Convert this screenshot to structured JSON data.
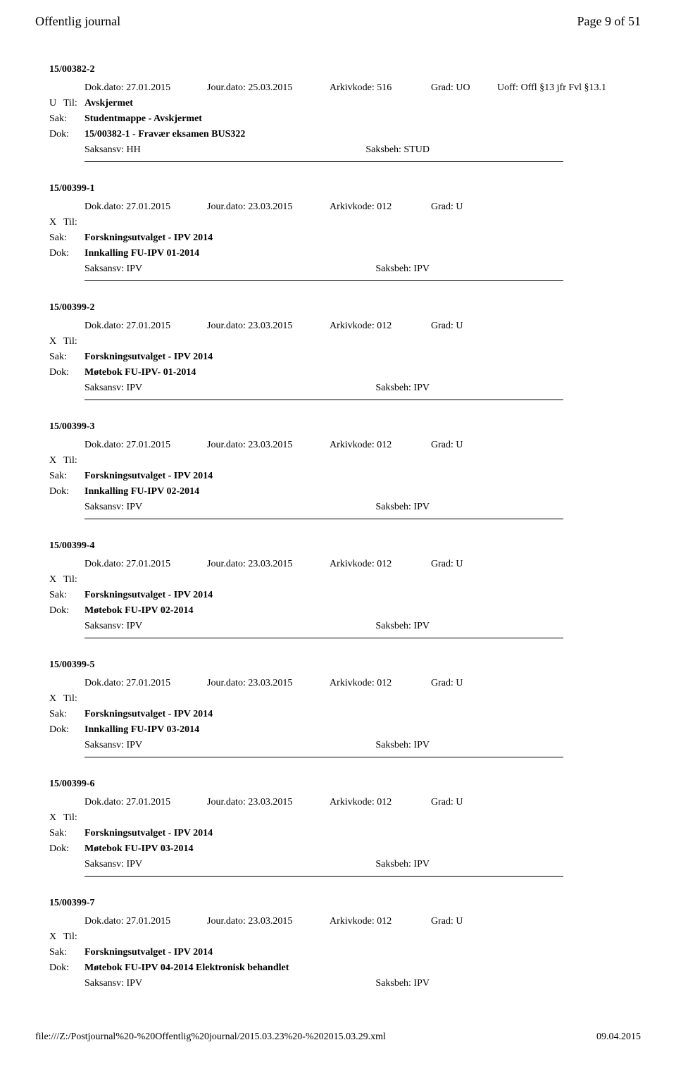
{
  "header": {
    "title": "Offentlig journal",
    "page_info": "Page 9 of 51"
  },
  "labels": {
    "dok_dato_prefix": "Dok.dato: ",
    "jour_dato_prefix": "Jour.dato: ",
    "arkiv_prefix": "Arkivkode: ",
    "grad_prefix": "Grad: ",
    "uoff_prefix": "Uoff: ",
    "til": "Til:",
    "sak": "Sak:",
    "dok": "Dok:",
    "saksansv_prefix": "Saksansv: ",
    "saksbeh_prefix": "Saksbeh: "
  },
  "cases": [
    {
      "id": "15/00382-2",
      "dok_dato": "27.01.2015",
      "jour_dato": "25.03.2015",
      "arkiv": "516",
      "grad": "UO",
      "uoff": "Offl §13 jfr Fvl §13.1",
      "type": "U",
      "til": "Avskjermet",
      "sak": "Studentmappe - Avskjermet",
      "dok": "15/00382-1 - Fravær eksamen BUS322",
      "saksansv": "HH",
      "saksbeh": "STUD"
    },
    {
      "id": "15/00399-1",
      "dok_dato": "27.01.2015",
      "jour_dato": "23.03.2015",
      "arkiv": "012",
      "grad": "U",
      "uoff": "",
      "type": "X",
      "til": "",
      "sak": "Forskningsutvalget - IPV 2014",
      "dok": "Innkalling FU-IPV 01-2014",
      "saksansv": "IPV",
      "saksbeh": "IPV"
    },
    {
      "id": "15/00399-2",
      "dok_dato": "27.01.2015",
      "jour_dato": "23.03.2015",
      "arkiv": "012",
      "grad": "U",
      "uoff": "",
      "type": "X",
      "til": "",
      "sak": "Forskningsutvalget - IPV 2014",
      "dok": "Møtebok FU-IPV- 01-2014",
      "saksansv": "IPV",
      "saksbeh": "IPV"
    },
    {
      "id": "15/00399-3",
      "dok_dato": "27.01.2015",
      "jour_dato": "23.03.2015",
      "arkiv": "012",
      "grad": "U",
      "uoff": "",
      "type": "X",
      "til": "",
      "sak": "Forskningsutvalget - IPV 2014",
      "dok": "Innkalling FU-IPV 02-2014",
      "saksansv": "IPV",
      "saksbeh": "IPV"
    },
    {
      "id": "15/00399-4",
      "dok_dato": "27.01.2015",
      "jour_dato": "23.03.2015",
      "arkiv": "012",
      "grad": "U",
      "uoff": "",
      "type": "X",
      "til": "",
      "sak": "Forskningsutvalget - IPV 2014",
      "dok": "Møtebok FU-IPV 02-2014",
      "saksansv": "IPV",
      "saksbeh": "IPV"
    },
    {
      "id": "15/00399-5",
      "dok_dato": "27.01.2015",
      "jour_dato": "23.03.2015",
      "arkiv": "012",
      "grad": "U",
      "uoff": "",
      "type": "X",
      "til": "",
      "sak": "Forskningsutvalget - IPV 2014",
      "dok": "Innkalling FU-IPV 03-2014",
      "saksansv": "IPV",
      "saksbeh": "IPV"
    },
    {
      "id": "15/00399-6",
      "dok_dato": "27.01.2015",
      "jour_dato": "23.03.2015",
      "arkiv": "012",
      "grad": "U",
      "uoff": "",
      "type": "X",
      "til": "",
      "sak": "Forskningsutvalget - IPV 2014",
      "dok": "Møtebok FU-IPV 03-2014",
      "saksansv": "IPV",
      "saksbeh": "IPV"
    },
    {
      "id": "15/00399-7",
      "dok_dato": "27.01.2015",
      "jour_dato": "23.03.2015",
      "arkiv": "012",
      "grad": "U",
      "uoff": "",
      "type": "X",
      "til": "",
      "sak": "Forskningsutvalget - IPV 2014",
      "dok": "Møtebok FU-IPV 04-2014 Elektronisk behandlet",
      "saksansv": "IPV",
      "saksbeh": "IPV"
    }
  ],
  "footer": {
    "path": "file:///Z:/Postjournal%20-%20Offentlig%20journal/2015.03.23%20-%202015.03.29.xml",
    "date": "09.04.2015"
  }
}
